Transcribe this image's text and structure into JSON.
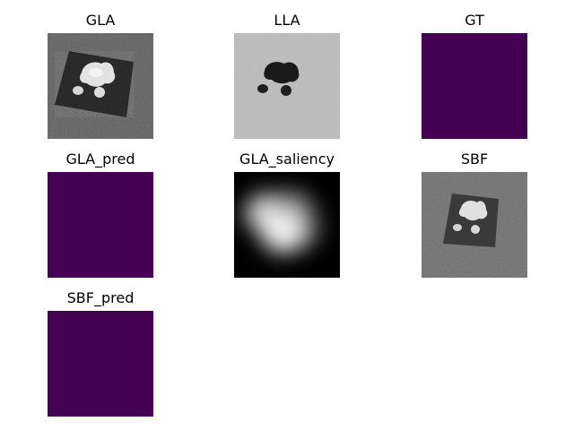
{
  "panels": [
    {
      "id": "gla",
      "title": "GLA",
      "kind": "scan"
    },
    {
      "id": "lla",
      "title": "LLA",
      "kind": "noise-inverted"
    },
    {
      "id": "gt",
      "title": "GT",
      "kind": "mask",
      "color": "#440154"
    },
    {
      "id": "gla_pred",
      "title": "GLA_pred",
      "kind": "mask",
      "color": "#440154"
    },
    {
      "id": "gla_saliency",
      "title": "GLA_saliency",
      "kind": "saliency"
    },
    {
      "id": "sbf",
      "title": "SBF",
      "kind": "scan-small"
    },
    {
      "id": "sbf_pred",
      "title": "SBF_pred",
      "kind": "mask",
      "color": "#440154"
    }
  ]
}
